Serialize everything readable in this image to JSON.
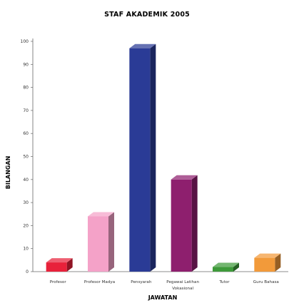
{
  "chart_data": {
    "type": "bar",
    "title": "STAF AKADEMIK 2005",
    "xlabel": "JAWATAN",
    "ylabel": "BILANGAN",
    "ylim": [
      0,
      100
    ],
    "yticks": [
      0,
      10,
      20,
      30,
      40,
      50,
      60,
      70,
      80,
      90,
      100
    ],
    "categories": [
      [
        "Profesor"
      ],
      [
        "Profesor Madya"
      ],
      [
        "Pensyarah"
      ],
      [
        "Pegawai Latihan",
        "Vokasional"
      ],
      [
        "Tutor"
      ],
      [
        "Guru Bahasa"
      ]
    ],
    "values": [
      4,
      24,
      97,
      40,
      2,
      6
    ],
    "colors": [
      "#e8213a",
      "#f4a2c8",
      "#2a3b96",
      "#8e1f6e",
      "#3e9a3a",
      "#f29a3a"
    ],
    "grid": false,
    "legend": "none"
  }
}
